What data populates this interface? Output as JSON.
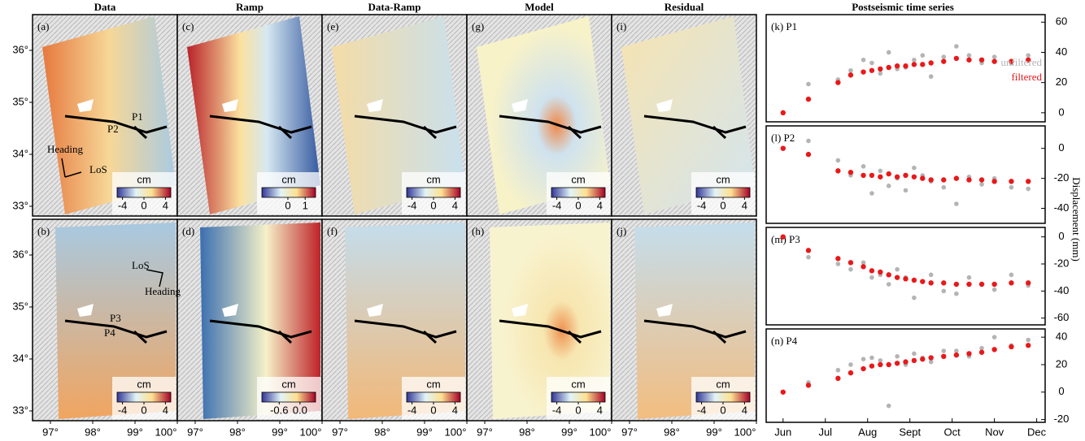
{
  "figure": {
    "columns": [
      "Data",
      "Ramp",
      "Data-Ramp",
      "Model",
      "Residual"
    ],
    "panels": [
      [
        "(a)",
        "(c)",
        "(e)",
        "(g)",
        "(i)"
      ],
      [
        "(b)",
        "(d)",
        "(f)",
        "(h)",
        "(j)"
      ]
    ],
    "lat_ticks": [
      {
        "value": 36,
        "label": "36°"
      },
      {
        "value": 35,
        "label": "35°"
      },
      {
        "value": 34,
        "label": "34°"
      },
      {
        "value": 33,
        "label": "33°"
      }
    ],
    "lon_ticks": [
      {
        "value": 97,
        "label": "97°"
      },
      {
        "value": 98,
        "label": "98°"
      },
      {
        "value": 99,
        "label": "99°"
      },
      {
        "value": 100,
        "label": "100°"
      }
    ],
    "colorbar_unit": "cm",
    "colorbars": [
      [
        {
          "clim": [
            -5,
            5
          ],
          "ticks": [
            -4,
            0,
            4
          ]
        },
        {
          "clim": [
            -1.5,
            1.6
          ],
          "ticks": [
            0,
            1
          ]
        },
        {
          "clim": [
            -5,
            5
          ],
          "ticks": [
            -4,
            0,
            4
          ]
        },
        {
          "clim": [
            -5,
            5
          ],
          "ticks": [
            -4,
            0,
            4
          ]
        },
        {
          "clim": [
            -5,
            5
          ],
          "ticks": [
            -4,
            0,
            4
          ]
        }
      ],
      [
        {
          "clim": [
            -5,
            5
          ],
          "ticks": [
            -4,
            0,
            4
          ]
        },
        {
          "clim": [
            -1.1,
            0.45
          ],
          "ticks": [
            -0.6,
            {
              "value": 0,
              "label": "0.0"
            }
          ]
        },
        {
          "clim": [
            -5,
            5
          ],
          "ticks": [
            -4,
            0,
            4
          ]
        },
        {
          "clim": [
            -5,
            5
          ],
          "ticks": [
            -4,
            0,
            4
          ]
        },
        {
          "clim": [
            -5,
            5
          ],
          "ticks": [
            -4,
            0,
            4
          ]
        }
      ]
    ],
    "points_top": [
      "P1",
      "P2"
    ],
    "points_bottom": [
      "P3",
      "P4"
    ],
    "heading": "Heading",
    "los": "LoS"
  },
  "timeseries_title": "Postseismic time series",
  "y_label": "Displacement (mm)",
  "chart_data": [
    {
      "type": "scatter",
      "title": "(k) P1",
      "legend": "right",
      "ylim": [
        -6,
        65
      ],
      "yticks": [
        0,
        20,
        40,
        60
      ],
      "xlim": [
        5.6,
        12.2
      ],
      "x": [
        6.0,
        6.6,
        7.3,
        7.6,
        7.9,
        8.1,
        8.3,
        8.5,
        8.7,
        8.9,
        9.1,
        9.3,
        9.5,
        9.8,
        10.1,
        10.4,
        10.7,
        11.0,
        11.4,
        11.8
      ],
      "series": [
        {
          "name": "unfiltered",
          "color": "#b4b4b4",
          "values": [
            0,
            19,
            22,
            28,
            35,
            33,
            26,
            40,
            29,
            30,
            35,
            38,
            24,
            37,
            44,
            38,
            33,
            37,
            33,
            38
          ]
        },
        {
          "name": "filtered",
          "color": "#e8191b",
          "values": [
            0,
            9,
            20,
            25,
            27,
            28,
            29,
            30,
            31,
            31,
            32,
            32,
            33,
            34,
            36,
            35,
            35,
            34,
            34,
            35
          ]
        }
      ]
    },
    {
      "type": "scatter",
      "title": "(l) P2",
      "ylim": [
        -50,
        15
      ],
      "yticks": [
        0,
        -20,
        -40
      ],
      "xlim": [
        5.6,
        12.2
      ],
      "x": [
        6.0,
        6.6,
        7.3,
        7.6,
        7.9,
        8.1,
        8.3,
        8.5,
        8.7,
        8.9,
        9.1,
        9.3,
        9.5,
        9.8,
        10.1,
        10.4,
        10.7,
        11.0,
        11.4,
        11.8
      ],
      "series": [
        {
          "color": "#b4b4b4",
          "values": [
            0,
            5,
            -8,
            -18,
            -12,
            -30,
            -15,
            -25,
            -20,
            -28,
            -13,
            -18,
            -22,
            -26,
            -37,
            -19,
            -24,
            -20,
            -26,
            -27
          ]
        },
        {
          "color": "#e8191b",
          "values": [
            0,
            -4,
            -15,
            -16,
            -18,
            -18,
            -19,
            -17,
            -19,
            -18,
            -19,
            -20,
            -21,
            -21,
            -20,
            -21,
            -21,
            -22,
            -22,
            -22
          ]
        }
      ]
    },
    {
      "type": "scatter",
      "title": "(m) P3",
      "ylim": [
        -65,
        7
      ],
      "yticks": [
        0,
        -20,
        -40,
        -60
      ],
      "xlim": [
        5.6,
        12.2
      ],
      "x": [
        6.0,
        6.6,
        7.3,
        7.6,
        7.9,
        8.1,
        8.3,
        8.5,
        8.7,
        8.9,
        9.1,
        9.3,
        9.5,
        9.8,
        10.1,
        10.4,
        10.7,
        11.0,
        11.4,
        11.8
      ],
      "series": [
        {
          "color": "#b4b4b4",
          "values": [
            0,
            -15,
            -20,
            -24,
            -19,
            -30,
            -28,
            -35,
            -24,
            -30,
            -45,
            -33,
            -28,
            -40,
            -42,
            -30,
            -35,
            -39,
            -28,
            -36
          ]
        },
        {
          "color": "#e8191b",
          "values": [
            0,
            -10,
            -16,
            -19,
            -22,
            -25,
            -26,
            -28,
            -30,
            -31,
            -32,
            -33,
            -34,
            -34,
            -35,
            -35,
            -35,
            -35,
            -34,
            -34
          ]
        }
      ]
    },
    {
      "type": "scatter",
      "title": "(n) P4",
      "ylim": [
        -22,
        46
      ],
      "yticks": [
        40,
        20,
        0,
        -20
      ],
      "xlim": [
        5.6,
        12.2
      ],
      "xticks": [
        {
          "value": 6,
          "label": "Jun"
        },
        {
          "value": 7,
          "label": "Jul"
        },
        {
          "value": 8,
          "label": "Aug"
        },
        {
          "value": 9,
          "label": "Sept"
        },
        {
          "value": 10,
          "label": "Oct"
        },
        {
          "value": 11,
          "label": "Nov"
        },
        {
          "value": 12,
          "label": "Dec"
        }
      ],
      "x": [
        6.0,
        6.6,
        7.3,
        7.6,
        7.9,
        8.1,
        8.3,
        8.5,
        8.7,
        8.9,
        9.1,
        9.3,
        9.5,
        9.8,
        10.1,
        10.4,
        10.7,
        11.0,
        11.4,
        11.8
      ],
      "series": [
        {
          "color": "#b4b4b4",
          "values": [
            0,
            7,
            16,
            20,
            24,
            25,
            23,
            -10,
            26,
            20,
            28,
            25,
            22,
            30,
            30,
            26,
            32,
            40,
            34,
            38
          ]
        },
        {
          "color": "#e8191b",
          "values": [
            0,
            5,
            10,
            14,
            17,
            19,
            20,
            20,
            21,
            22,
            23,
            24,
            25,
            26,
            27,
            28,
            29,
            31,
            33,
            34
          ]
        }
      ]
    }
  ]
}
